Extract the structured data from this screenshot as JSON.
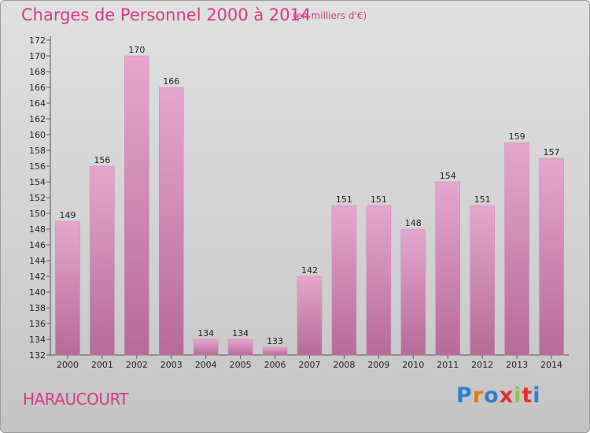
{
  "title": "Charges de Personnel 2000 à 2014",
  "unit_note": "(en milliers d'€)",
  "commune": "HARAUCOURT",
  "logo": {
    "text": "Proxiti",
    "letter_colors": [
      "#2f7fd0",
      "#e07a10",
      "#2f7fd0",
      "#e03030",
      "#8cc63f",
      "#e03030",
      "#2f7fd0"
    ]
  },
  "colors": {
    "bar_top": "#e6a6d0",
    "bar_bottom": "#b66a9a",
    "title": "#d63a8a"
  },
  "chart_data": {
    "type": "bar",
    "categories": [
      "2000",
      "2001",
      "2002",
      "2003",
      "2004",
      "2005",
      "2006",
      "2007",
      "2008",
      "2009",
      "2010",
      "2011",
      "2012",
      "2013",
      "2014"
    ],
    "values": [
      149,
      156,
      170,
      166,
      134,
      134,
      133,
      142,
      151,
      151,
      148,
      154,
      151,
      159,
      157
    ],
    "ylim": [
      132,
      172
    ],
    "yticks": [
      132,
      134,
      136,
      138,
      140,
      142,
      144,
      146,
      148,
      150,
      152,
      154,
      156,
      158,
      160,
      162,
      164,
      166,
      168,
      170,
      172
    ],
    "grid": false
  }
}
